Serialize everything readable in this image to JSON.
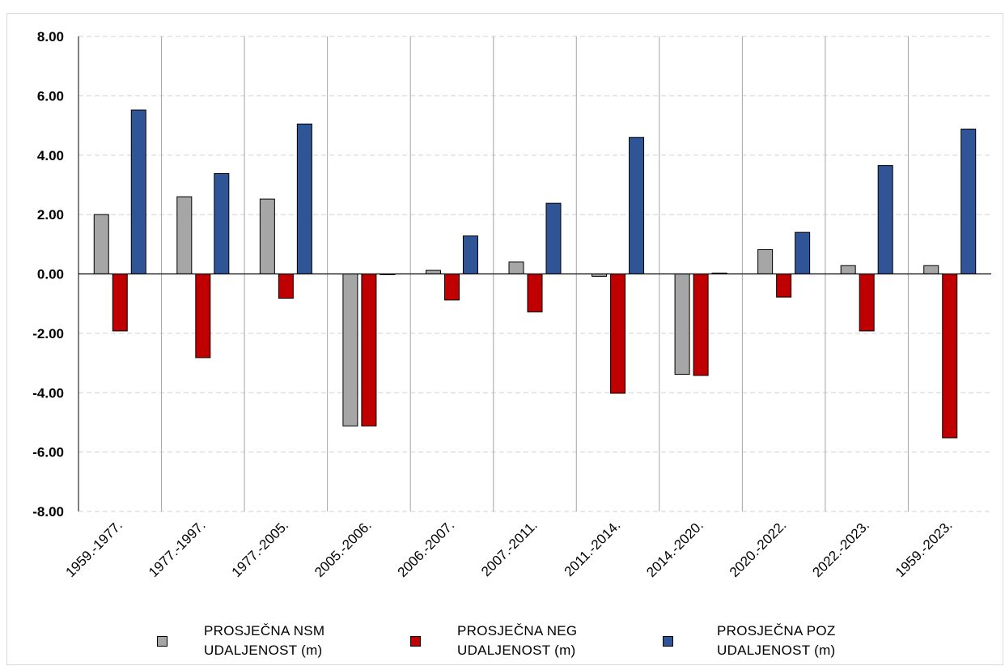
{
  "chart_data": {
    "type": "bar",
    "categories": [
      "1959.-1977.",
      "1977.-1997.",
      "1977.-2005.",
      "2005.-2006.",
      "2006.-2007.",
      "2007.-2011.",
      "2011.-2014.",
      "2014.-2020.",
      "2020.-2022.",
      "2022.-2023.",
      "1959.-2023."
    ],
    "series": [
      {
        "name": "PROSJEČNA NSM\nUDALJENOST (m)",
        "color": "#a6a6a6",
        "values": [
          2.0,
          2.6,
          2.52,
          -5.12,
          0.12,
          0.4,
          -0.08,
          -3.38,
          0.82,
          0.28,
          0.28
        ]
      },
      {
        "name": "PROSJEČNA NEG\nUDALJENOST (m)",
        "color": "#c00000",
        "values": [
          -1.92,
          -2.82,
          -0.82,
          -5.12,
          -0.88,
          -1.28,
          -4.02,
          -3.42,
          -0.78,
          -1.92,
          -5.52
        ]
      },
      {
        "name": "PROSJEČNA POZ\nUDALJENOST (m)",
        "color": "#2f5597",
        "values": [
          5.52,
          3.38,
          5.05,
          0.0,
          1.28,
          2.38,
          4.6,
          0.03,
          1.4,
          3.65,
          4.88
        ]
      }
    ],
    "ylim": [
      -8,
      8
    ],
    "yticks": [
      "8.00",
      "6.00",
      "4.00",
      "2.00",
      "0.00",
      "-2.00",
      "-4.00",
      "-6.00",
      "-8.00"
    ],
    "title": "",
    "xlabel": "",
    "ylabel": "",
    "grid": "horizontal dashed",
    "legend_position": "bottom"
  }
}
